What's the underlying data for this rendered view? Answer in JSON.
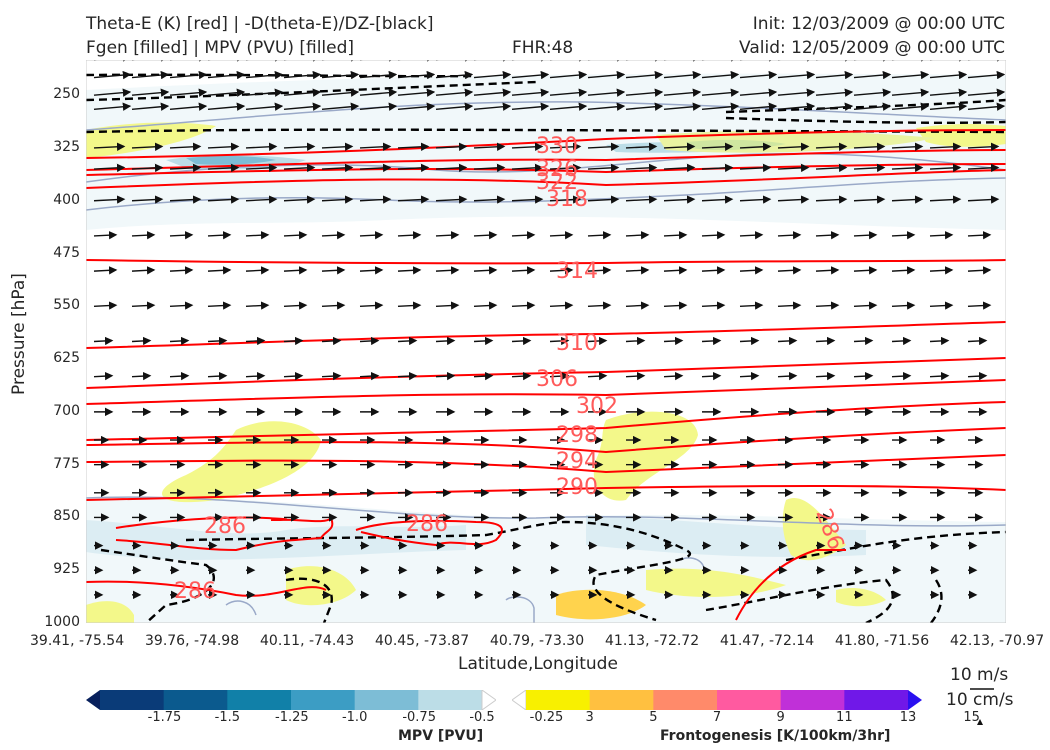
{
  "title": {
    "line1_left": "Theta-E (K) [red] | -D(theta-E)/DZ-[black]",
    "line2_left": "Fgen [filled] | MPV (PVU) [filled]",
    "center": "FHR:48",
    "line1_right": "Init: 12/03/2009 @ 00:00 UTC",
    "line2_right": "Valid: 12/05/2009 @ 00:00 UTC"
  },
  "chart_data": {
    "type": "cross-section",
    "xlabel": "Latitude,Longitude",
    "ylabel": "Pressure [hPa]",
    "yscale": "pressure (top 200 hPa, bottom 1000 hPa)",
    "yticks": [
      "250",
      "325",
      "400",
      "475",
      "550",
      "625",
      "700",
      "775",
      "850",
      "925",
      "1000"
    ],
    "xticks": [
      "39.41, -75.54",
      "39.76, -74.98",
      "40.11, -74.43",
      "40.45, -73.87",
      "40.79, -73.30",
      "41.13, -72.72",
      "41.47, -72.14",
      "41.80, -71.56",
      "42.13, -70.97"
    ],
    "theta_e_contours": [
      {
        "value": 330,
        "label": "330"
      },
      {
        "value": 326,
        "label": "326"
      },
      {
        "value": 322,
        "label": "322"
      },
      {
        "value": 318,
        "label": "318"
      },
      {
        "value": 314,
        "label": "314"
      },
      {
        "value": 310,
        "label": "310"
      },
      {
        "value": 306,
        "label": "306"
      },
      {
        "value": 302,
        "label": "302"
      },
      {
        "value": 298,
        "label": "298"
      },
      {
        "value": 294,
        "label": "294"
      },
      {
        "value": 290,
        "label": "290"
      },
      {
        "value": 286,
        "label": "286"
      }
    ],
    "colorbar_mpv": {
      "label": "MPV [PVU]",
      "ticks": [
        "-1.75",
        "-1.5",
        "-1.25",
        "-1.0",
        "-0.75",
        "-0.5",
        "-0.25"
      ],
      "colors": [
        "#08205c",
        "#0a3b78",
        "#0b5a8e",
        "#1180a8",
        "#3c9dc4",
        "#7dbdd6",
        "#bcdde7",
        "#ffffff"
      ]
    },
    "colorbar_fgen": {
      "label": "Frontogenesis [K/100km/3hr]",
      "ticks": [
        "3",
        "5",
        "7",
        "9",
        "11",
        "13",
        "15"
      ],
      "colors": [
        "#ffffff",
        "#f8f000",
        "#ffc040",
        "#ff8a6a",
        "#ff5aa0",
        "#c030d8",
        "#7018e8",
        "#2a10f0"
      ]
    },
    "wind_reference": {
      "horizontal": "10 m/s",
      "vertical": "10 cm/s"
    },
    "colors": {
      "theta_e": "#ff0000",
      "stability": "#000000",
      "mpv_outline": "#9aa9c8"
    }
  }
}
